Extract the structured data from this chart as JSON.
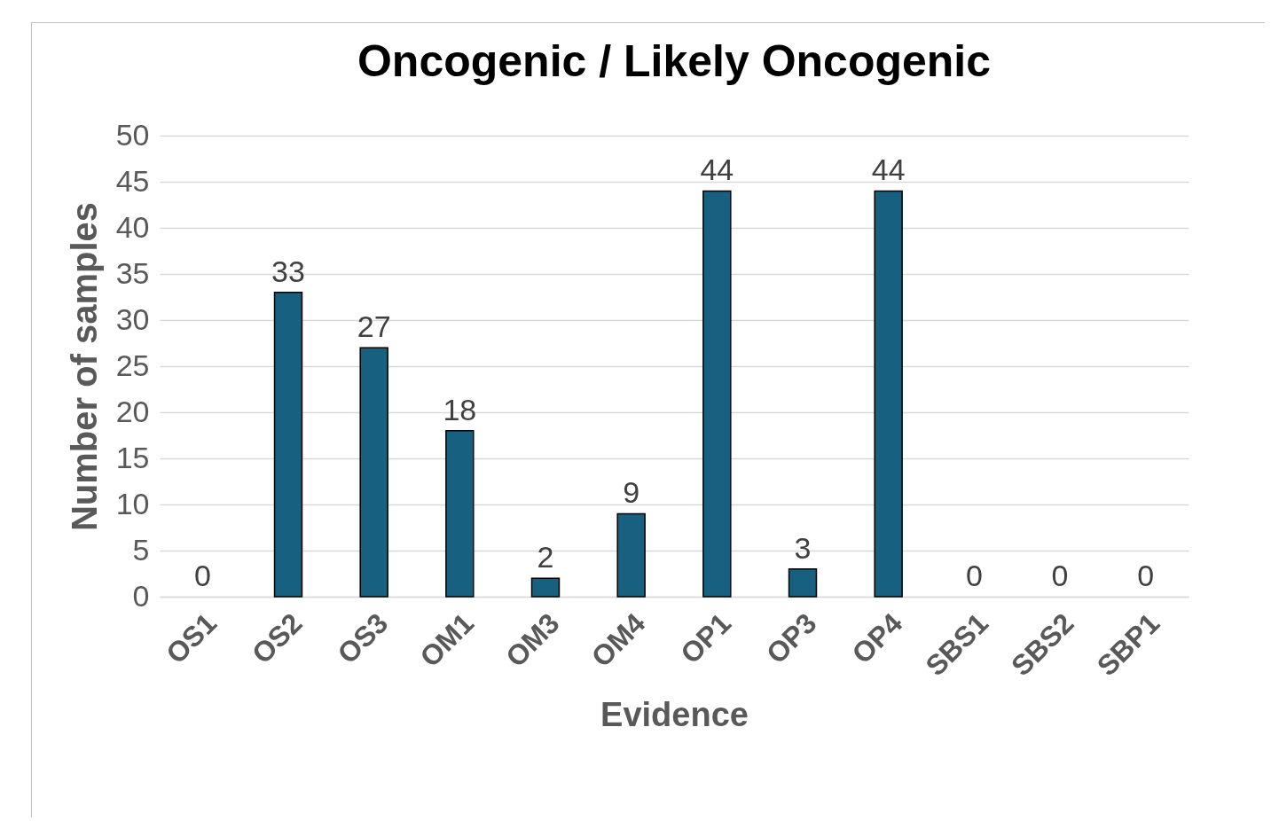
{
  "chart_data": {
    "type": "bar",
    "title": "Oncogenic / Likely Oncogenic",
    "xlabel": "Evidence",
    "ylabel": "Number of samples",
    "categories": [
      "OS1",
      "OS2",
      "OS3",
      "OM1",
      "OM3",
      "OM4",
      "OP1",
      "OP3",
      "OP4",
      "SBS1",
      "SBS2",
      "SBP1"
    ],
    "values": [
      0,
      33,
      27,
      18,
      2,
      9,
      44,
      3,
      44,
      0,
      0,
      0
    ],
    "color": "#17607f",
    "ylim": [
      0,
      50
    ],
    "yticks": [
      0,
      5,
      10,
      15,
      20,
      25,
      30,
      35,
      40,
      45,
      50
    ],
    "grid": "y",
    "data_labels": true
  }
}
